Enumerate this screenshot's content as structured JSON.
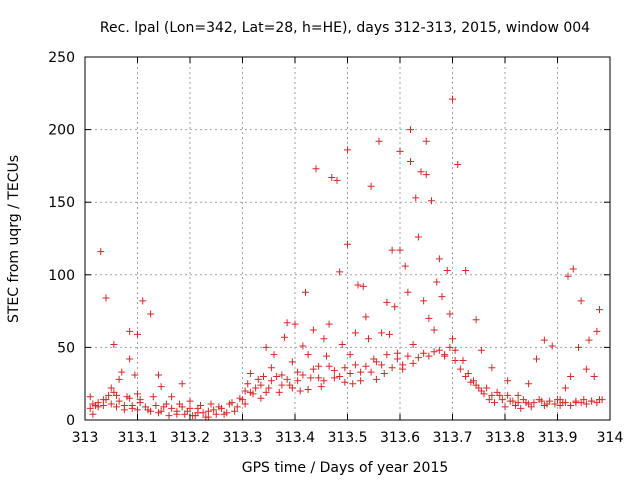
{
  "chart_data": {
    "type": "scatter",
    "title": "Rec. lpal (Lon=342, Lat=28, h=HE), days 312-313, 2015, window 004",
    "xlabel": "GPS time / Days of year 2015",
    "ylabel": "STEC from uqrg / TECUs",
    "xlim": [
      313,
      314
    ],
    "ylim": [
      0,
      250
    ],
    "x_ticks": [
      "313",
      "313.1",
      "313.2",
      "313.3",
      "313.4",
      "313.5",
      "313.6",
      "313.7",
      "313.8",
      "313.9",
      "314"
    ],
    "y_ticks": [
      "0",
      "50",
      "100",
      "150",
      "200",
      "250"
    ],
    "grid": true,
    "legend": "none",
    "marker": "+",
    "color": "#d62728",
    "series": [
      {
        "points": [
          [
            313.01,
            8
          ],
          [
            313.01,
            16
          ],
          [
            313.015,
            4
          ],
          [
            313.02,
            10
          ],
          [
            313.025,
            12
          ],
          [
            313.03,
            116
          ],
          [
            313.035,
            10
          ],
          [
            313.04,
            14
          ],
          [
            313.04,
            84
          ],
          [
            313.05,
            11
          ],
          [
            313.05,
            22
          ],
          [
            313.055,
            52
          ],
          [
            313.06,
            9
          ],
          [
            313.06,
            17
          ],
          [
            313.065,
            28
          ],
          [
            313.07,
            33
          ],
          [
            313.075,
            10
          ],
          [
            313.08,
            16
          ],
          [
            313.085,
            42
          ],
          [
            313.085,
            61
          ],
          [
            313.09,
            8
          ],
          [
            313.095,
            31
          ],
          [
            313.1,
            59
          ],
          [
            313.1,
            7
          ],
          [
            313.1,
            18
          ],
          [
            313.105,
            12
          ],
          [
            313.11,
            82
          ],
          [
            313.12,
            7
          ],
          [
            313.125,
            73
          ],
          [
            313.13,
            16
          ],
          [
            313.14,
            5
          ],
          [
            313.14,
            31
          ],
          [
            313.145,
            23
          ],
          [
            313.15,
            9
          ],
          [
            313.16,
            3
          ],
          [
            313.165,
            16
          ],
          [
            313.175,
            6
          ],
          [
            313.18,
            11
          ],
          [
            313.185,
            25
          ],
          [
            313.19,
            4
          ],
          [
            313.2,
            8
          ],
          [
            313.2,
            13
          ],
          [
            313.21,
            3
          ],
          [
            313.215,
            5
          ],
          [
            313.22,
            10
          ],
          [
            313.23,
            2
          ],
          [
            313.235,
            6
          ],
          [
            313.24,
            11
          ],
          [
            313.25,
            4
          ],
          [
            313.26,
            8
          ],
          [
            313.27,
            5
          ],
          [
            313.28,
            12
          ],
          [
            313.29,
            9
          ],
          [
            313.3,
            14
          ],
          [
            313.305,
            20
          ],
          [
            313.31,
            25
          ],
          [
            313.315,
            32
          ],
          [
            313.32,
            18
          ],
          [
            313.33,
            28
          ],
          [
            313.335,
            15
          ],
          [
            313.34,
            30
          ],
          [
            313.345,
            50
          ],
          [
            313.35,
            22
          ],
          [
            313.355,
            36
          ],
          [
            313.36,
            45
          ],
          [
            313.37,
            19
          ],
          [
            313.375,
            31
          ],
          [
            313.38,
            57
          ],
          [
            313.385,
            67
          ],
          [
            313.39,
            24
          ],
          [
            313.395,
            40
          ],
          [
            313.4,
            66
          ],
          [
            313.405,
            33
          ],
          [
            313.41,
            20
          ],
          [
            313.415,
            51
          ],
          [
            313.42,
            88
          ],
          [
            313.425,
            45
          ],
          [
            313.43,
            29
          ],
          [
            313.435,
            62
          ],
          [
            313.44,
            173
          ],
          [
            313.445,
            37
          ],
          [
            313.45,
            23
          ],
          [
            313.455,
            56
          ],
          [
            313.46,
            44
          ],
          [
            313.465,
            66
          ],
          [
            313.47,
            167
          ],
          [
            313.475,
            29
          ],
          [
            313.48,
            165
          ],
          [
            313.485,
            102
          ],
          [
            313.49,
            52
          ],
          [
            313.495,
            36
          ],
          [
            313.5,
            186
          ],
          [
            313.5,
            121
          ],
          [
            313.505,
            45
          ],
          [
            313.51,
            25
          ],
          [
            313.515,
            60
          ],
          [
            313.52,
            93
          ],
          [
            313.525,
            33
          ],
          [
            313.53,
            92
          ],
          [
            313.535,
            71
          ],
          [
            313.54,
            56
          ],
          [
            313.545,
            161
          ],
          [
            313.55,
            42
          ],
          [
            313.555,
            28
          ],
          [
            313.56,
            192
          ],
          [
            313.565,
            60
          ],
          [
            313.57,
            32
          ],
          [
            313.575,
            81
          ],
          [
            313.58,
            59
          ],
          [
            313.585,
            117
          ],
          [
            313.59,
            78
          ],
          [
            313.595,
            46
          ],
          [
            313.6,
            185
          ],
          [
            313.6,
            117
          ],
          [
            313.605,
            35
          ],
          [
            313.61,
            106
          ],
          [
            313.615,
            88
          ],
          [
            313.62,
            200
          ],
          [
            313.62,
            178
          ],
          [
            313.625,
            52
          ],
          [
            313.63,
            153
          ],
          [
            313.635,
            126
          ],
          [
            313.64,
            171
          ],
          [
            313.645,
            82
          ],
          [
            313.65,
            169
          ],
          [
            313.65,
            192
          ],
          [
            313.655,
            70
          ],
          [
            313.66,
            151
          ],
          [
            313.665,
            62
          ],
          [
            313.67,
            95
          ],
          [
            313.675,
            111
          ],
          [
            313.68,
            85
          ],
          [
            313.685,
            44
          ],
          [
            313.69,
            103
          ],
          [
            313.695,
            73
          ],
          [
            313.7,
            221
          ],
          [
            313.7,
            56
          ],
          [
            313.705,
            48
          ],
          [
            313.71,
            176
          ],
          [
            313.72,
            41
          ],
          [
            313.725,
            103
          ],
          [
            313.73,
            32
          ],
          [
            313.74,
            27
          ],
          [
            313.745,
            69
          ],
          [
            313.75,
            22
          ],
          [
            313.755,
            48
          ],
          [
            313.76,
            18
          ],
          [
            313.77,
            14
          ],
          [
            313.775,
            36
          ],
          [
            313.78,
            12
          ],
          [
            313.79,
            17
          ],
          [
            313.8,
            9
          ],
          [
            313.805,
            27
          ],
          [
            313.81,
            13
          ],
          [
            313.82,
            10
          ],
          [
            313.825,
            17
          ],
          [
            313.83,
            8
          ],
          [
            313.84,
            12
          ],
          [
            313.845,
            25
          ],
          [
            313.85,
            9
          ],
          [
            313.86,
            42
          ],
          [
            313.87,
            13
          ],
          [
            313.875,
            55
          ],
          [
            313.88,
            11
          ],
          [
            313.89,
            51
          ],
          [
            313.9,
            14
          ],
          [
            313.905,
            10
          ],
          [
            313.91,
            12
          ],
          [
            313.915,
            22
          ],
          [
            313.92,
            99
          ],
          [
            313.925,
            30
          ],
          [
            313.93,
            104
          ],
          [
            313.935,
            12
          ],
          [
            313.94,
            50
          ],
          [
            313.945,
            82
          ],
          [
            313.95,
            14
          ],
          [
            313.955,
            35
          ],
          [
            313.96,
            55
          ],
          [
            313.965,
            13
          ],
          [
            313.97,
            30
          ],
          [
            313.975,
            61
          ],
          [
            313.98,
            76
          ],
          [
            313.985,
            14
          ],
          [
            313.015,
            11
          ],
          [
            313.025,
            9
          ],
          [
            313.035,
            14
          ],
          [
            313.045,
            17
          ],
          [
            313.055,
            19
          ],
          [
            313.065,
            13
          ],
          [
            313.075,
            7
          ],
          [
            313.085,
            15
          ],
          [
            313.09,
            10
          ],
          [
            313.105,
            14
          ],
          [
            313.115,
            9
          ],
          [
            313.125,
            6
          ],
          [
            313.135,
            10
          ],
          [
            313.145,
            6
          ],
          [
            313.155,
            11
          ],
          [
            313.165,
            8
          ],
          [
            313.175,
            4
          ],
          [
            313.185,
            9
          ],
          [
            313.195,
            6
          ],
          [
            313.205,
            3
          ],
          [
            313.215,
            8
          ],
          [
            313.225,
            5
          ],
          [
            313.235,
            2
          ],
          [
            313.245,
            7
          ],
          [
            313.255,
            9
          ],
          [
            313.265,
            4
          ],
          [
            313.275,
            11
          ],
          [
            313.285,
            6
          ],
          [
            313.295,
            15
          ],
          [
            313.305,
            11
          ],
          [
            313.315,
            19
          ],
          [
            313.325,
            22
          ],
          [
            313.335,
            24
          ],
          [
            313.345,
            19
          ],
          [
            313.355,
            27
          ],
          [
            313.365,
            30
          ],
          [
            313.375,
            24
          ],
          [
            313.385,
            28
          ],
          [
            313.395,
            22
          ],
          [
            313.405,
            27
          ],
          [
            313.415,
            31
          ],
          [
            313.425,
            21
          ],
          [
            313.435,
            35
          ],
          [
            313.445,
            29
          ],
          [
            313.455,
            27
          ],
          [
            313.465,
            37
          ],
          [
            313.475,
            34
          ],
          [
            313.485,
            30
          ],
          [
            313.495,
            26
          ],
          [
            313.505,
            32
          ],
          [
            313.515,
            38
          ],
          [
            313.525,
            27
          ],
          [
            313.535,
            37
          ],
          [
            313.545,
            33
          ],
          [
            313.555,
            40
          ],
          [
            313.565,
            38
          ],
          [
            313.575,
            45
          ],
          [
            313.585,
            36
          ],
          [
            313.595,
            42
          ],
          [
            313.605,
            38
          ],
          [
            313.615,
            44
          ],
          [
            313.625,
            39
          ],
          [
            313.635,
            43
          ],
          [
            313.645,
            46
          ],
          [
            313.655,
            44
          ],
          [
            313.665,
            47
          ],
          [
            313.675,
            48
          ],
          [
            313.685,
            45
          ],
          [
            313.695,
            50
          ],
          [
            313.705,
            41
          ],
          [
            313.715,
            35
          ],
          [
            313.725,
            30
          ],
          [
            313.735,
            26
          ],
          [
            313.745,
            24
          ],
          [
            313.755,
            20
          ],
          [
            313.765,
            22
          ],
          [
            313.775,
            17
          ],
          [
            313.785,
            19
          ],
          [
            313.795,
            14
          ],
          [
            313.805,
            17
          ],
          [
            313.815,
            13
          ],
          [
            313.825,
            12
          ],
          [
            313.835,
            14
          ],
          [
            313.845,
            11
          ],
          [
            313.855,
            12
          ],
          [
            313.865,
            14
          ],
          [
            313.875,
            10
          ],
          [
            313.885,
            13
          ],
          [
            313.895,
            11
          ],
          [
            313.905,
            14
          ],
          [
            313.915,
            12
          ],
          [
            313.925,
            10
          ],
          [
            313.935,
            13
          ],
          [
            313.945,
            12
          ],
          [
            313.955,
            11
          ],
          [
            313.965,
            13
          ],
          [
            313.975,
            12
          ],
          [
            313.98,
            14
          ]
        ]
      }
    ]
  }
}
